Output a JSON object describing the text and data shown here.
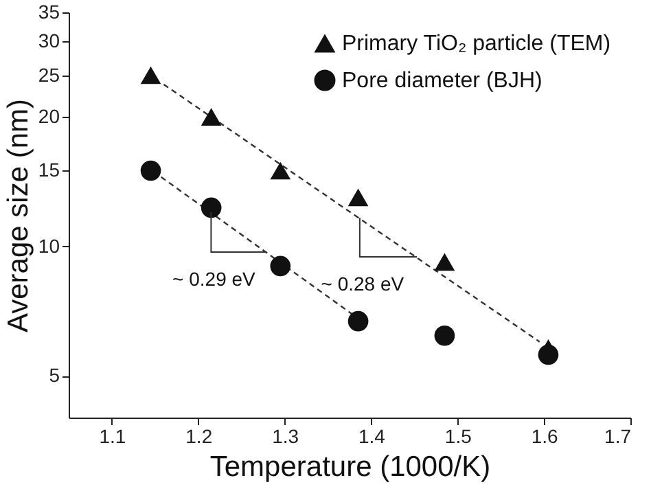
{
  "chart_data": {
    "type": "scatter",
    "xlabel": "Temperature (1000/K)",
    "ylabel": "Average size (nm)",
    "log": "y",
    "xlim": [
      1.05,
      1.7
    ],
    "xticks": [
      1.1,
      1.2,
      1.3,
      1.4,
      1.5,
      1.6,
      1.7
    ],
    "ylim": [
      4,
      35
    ],
    "yticks": [
      5,
      10,
      15,
      20,
      25,
      30,
      35
    ],
    "legend": "top right",
    "series": [
      {
        "name": "Primary TiO₂ particle (TEM)",
        "marker": "triangle",
        "color": "#111111",
        "x": [
          1.145,
          1.215,
          1.295,
          1.385,
          1.485,
          1.605
        ],
        "values": [
          25,
          20,
          15,
          13,
          9.2,
          5.8
        ]
      },
      {
        "name": "Pore diameter (BJH)",
        "marker": "circle",
        "color": "#111111",
        "x": [
          1.145,
          1.215,
          1.295,
          1.385,
          1.485,
          1.605
        ],
        "values": [
          15,
          12.3,
          9.0,
          6.7,
          6.2,
          5.6
        ]
      },
      {
        "type": "line",
        "marker": "none",
        "line_style": "dashed",
        "color": "#333333",
        "x": [
          1.16,
          1.595
        ],
        "values": [
          23.8,
          6.0
        ]
      },
      {
        "type": "line",
        "marker": "none",
        "line_style": "dashed",
        "color": "#333333",
        "x": [
          1.157,
          1.385
        ],
        "values": [
          14.5,
          6.8
        ]
      }
    ],
    "annotations": [
      {
        "text": "~ 0.29 eV",
        "x": 1.218,
        "y": 11.8
      },
      {
        "text": "~ 0.28 eV",
        "x": 1.39,
        "y": 11.5
      }
    ]
  }
}
